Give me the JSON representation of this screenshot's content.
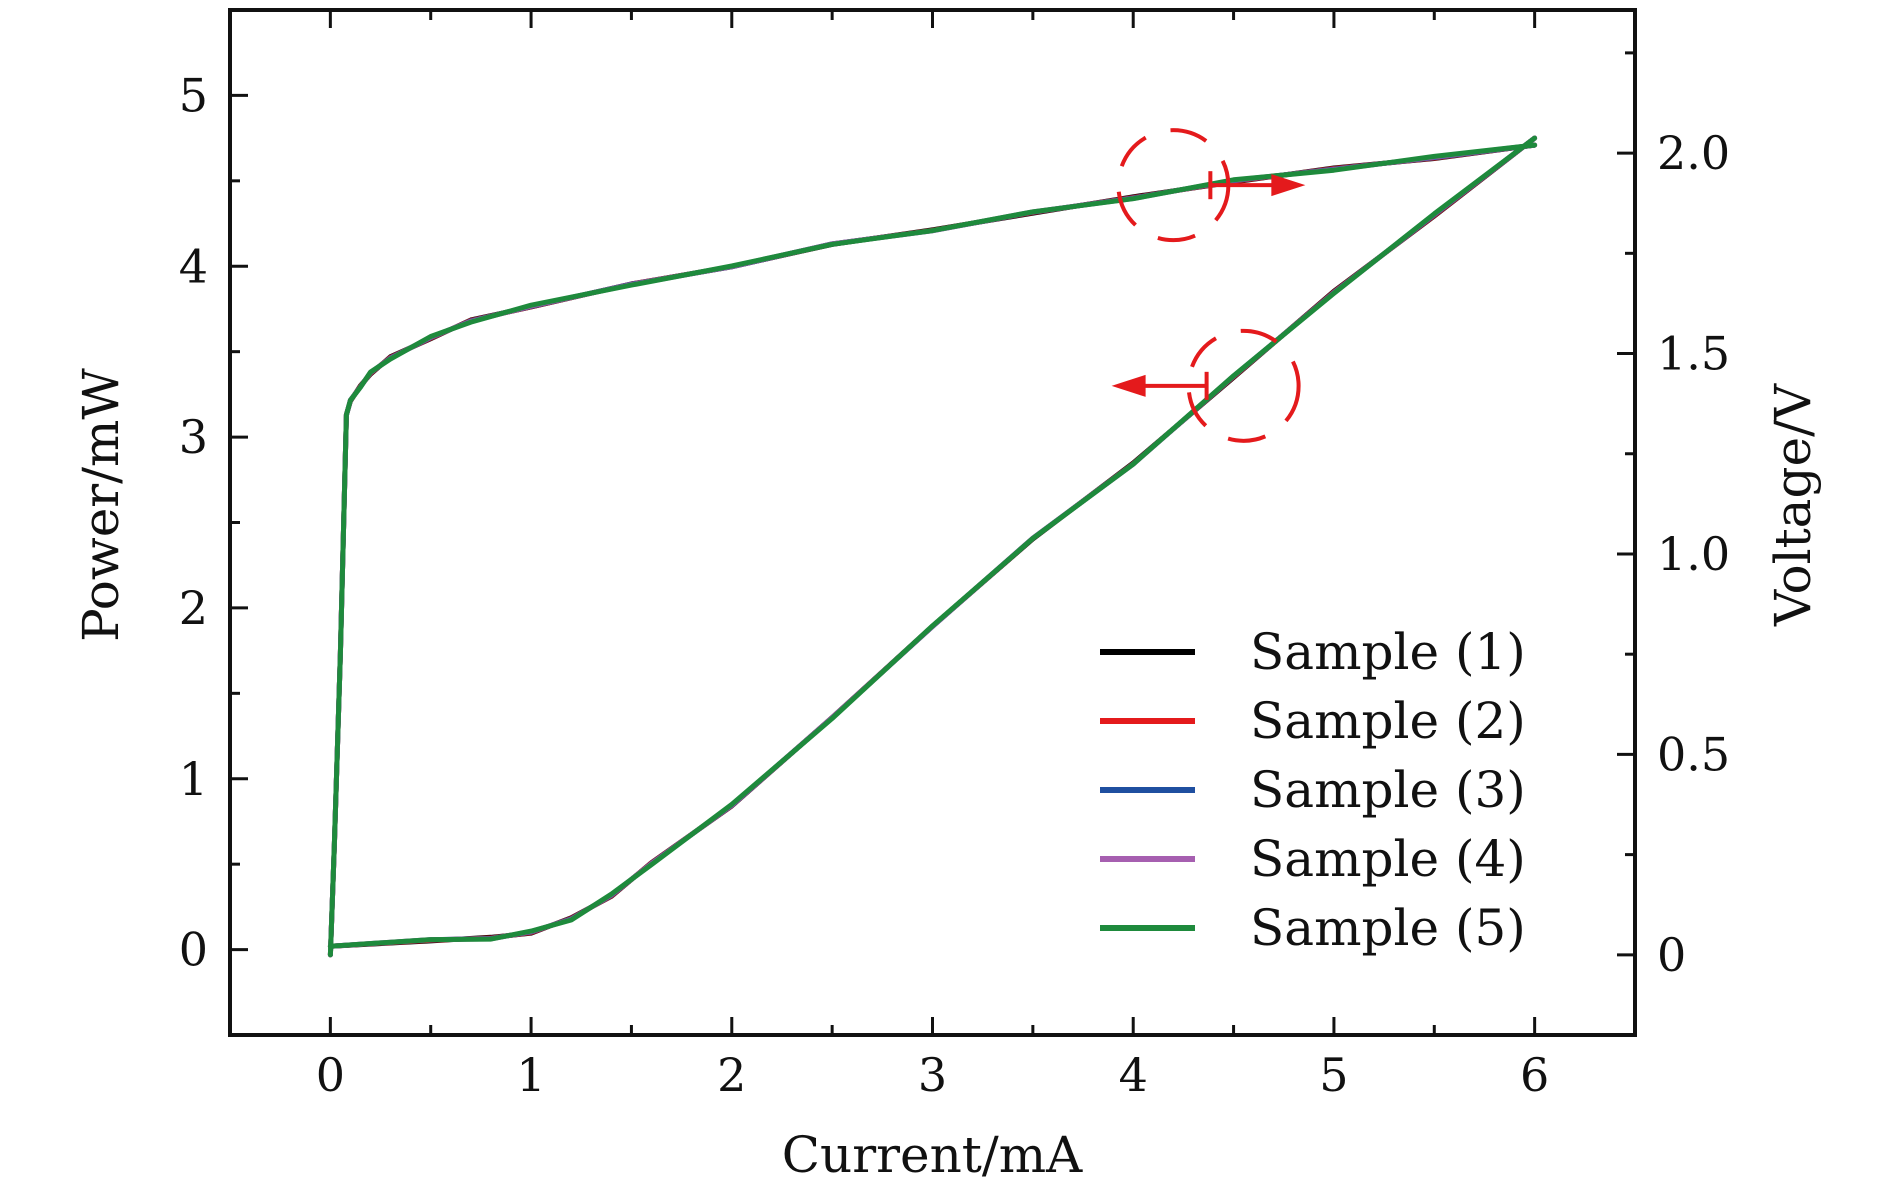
{
  "chart_data": {
    "type": "line",
    "title": "",
    "xlabel": "Current/mA",
    "ylabel": "Power/mW",
    "y2label": "Voltage/V",
    "xlim": [
      -0.5,
      6.5
    ],
    "ylim": [
      -0.5,
      5.5
    ],
    "y2lim": [
      -0.2,
      2.357
    ],
    "x_ticks": [
      0,
      1,
      2,
      3,
      4,
      5,
      6
    ],
    "x_tick_labels": [
      "0",
      "1",
      "2",
      "3",
      "4",
      "5",
      "6"
    ],
    "y_ticks": [
      0,
      1,
      2,
      3,
      4,
      5
    ],
    "y_tick_labels": [
      "0",
      "1",
      "2",
      "3",
      "4",
      "5"
    ],
    "y2_ticks": [
      0,
      0.5,
      1.0,
      1.5,
      2.0
    ],
    "y2_tick_labels": [
      "0",
      "0.5",
      "1.0",
      "1.5",
      "2.0"
    ],
    "grid": false,
    "legend_position": "bottom-right",
    "series": [
      {
        "name": "Sample (1)",
        "color": "#000000"
      },
      {
        "name": "Sample (2)",
        "color": "#e41a1c"
      },
      {
        "name": "Sample (3)",
        "color": "#1f4fa0"
      },
      {
        "name": "Sample (4)",
        "color": "#a65fb0"
      },
      {
        "name": "Sample (5)",
        "color": "#1e8a3c"
      }
    ],
    "power_curve": {
      "axis": "left",
      "x": [
        0,
        0.5,
        0.8,
        1.0,
        1.2,
        1.4,
        1.6,
        2.0,
        2.5,
        3.0,
        3.5,
        4.0,
        4.5,
        5.0,
        5.5,
        6.0
      ],
      "y": [
        0.02,
        0.05,
        0.07,
        0.1,
        0.18,
        0.32,
        0.5,
        0.85,
        1.35,
        1.9,
        2.4,
        2.85,
        3.35,
        3.85,
        4.3,
        4.75
      ]
    },
    "voltage_curve": {
      "axis": "right",
      "x": [
        0,
        0.02,
        0.05,
        0.08,
        0.1,
        0.15,
        0.2,
        0.3,
        0.5,
        0.7,
        1.0,
        1.5,
        2.0,
        2.5,
        3.0,
        3.5,
        4.0,
        4.5,
        5.0,
        5.5,
        6.0
      ],
      "y": [
        0.0,
        0.28,
        0.75,
        1.35,
        1.38,
        1.42,
        1.45,
        1.49,
        1.54,
        1.58,
        1.62,
        1.67,
        1.72,
        1.77,
        1.81,
        1.85,
        1.89,
        1.93,
        1.96,
        1.99,
        2.02
      ]
    },
    "annotations": [
      {
        "type": "dashed-circle-with-arrow",
        "series": "voltage_curve",
        "x": 4.2,
        "y": 1.92,
        "arrow": "right"
      },
      {
        "type": "dashed-circle-with-arrow",
        "series": "power_curve",
        "x": 4.55,
        "y": 3.3,
        "arrow": "left"
      }
    ]
  }
}
